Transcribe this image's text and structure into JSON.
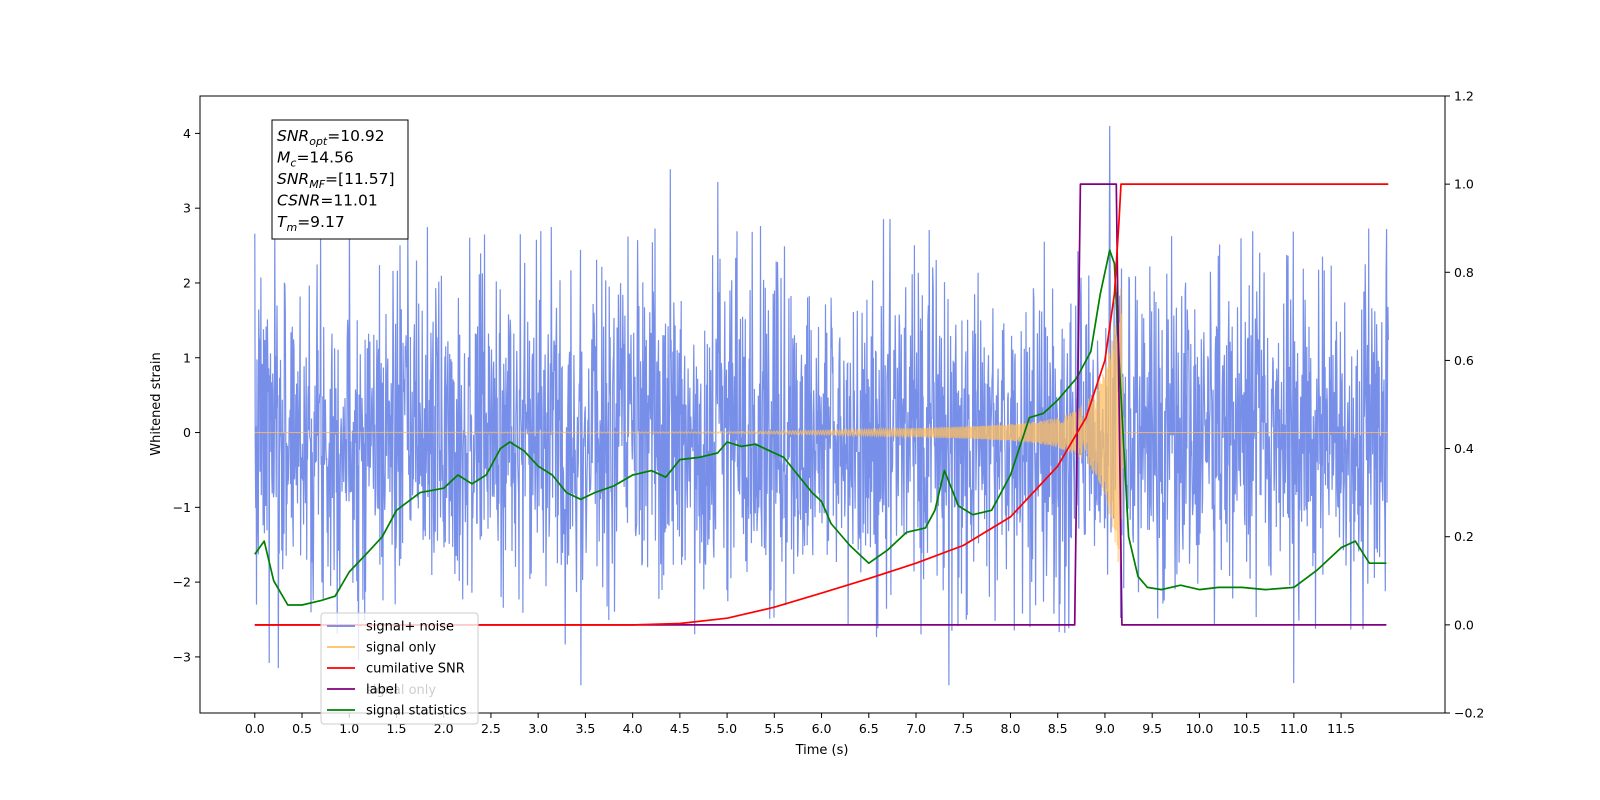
{
  "chart_data": {
    "type": "line",
    "xlabel": "Time (s)",
    "ylabel": "Whitened strain",
    "xlim": [
      -0.58,
      12.6
    ],
    "ylim": [
      -3.75,
      4.5
    ],
    "y2lim": [
      -0.2,
      1.2
    ],
    "x_ticks": [
      "0.0",
      "0.5",
      "1.0",
      "1.5",
      "2.0",
      "2.5",
      "3.0",
      "3.5",
      "4.0",
      "4.5",
      "5.0",
      "5.5",
      "6.0",
      "6.5",
      "7.0",
      "7.5",
      "8.0",
      "8.5",
      "9.0",
      "9.5",
      "10.0",
      "10.5",
      "11.0",
      "11.5"
    ],
    "y_ticks": [
      "−3",
      "−2",
      "−1",
      "0",
      "1",
      "2",
      "3",
      "4"
    ],
    "y2_ticks": [
      "−0.2",
      "0.0",
      "0.2",
      "0.4",
      "0.6",
      "0.8",
      "1.0",
      "1.2"
    ],
    "annotation": [
      {
        "base": "SNR",
        "sub": "opt",
        "value": "=10.92"
      },
      {
        "base": "M",
        "sub": "c",
        "value": "=14.56"
      },
      {
        "base": "SNR",
        "sub": "MF",
        "value": "=[11.57]"
      },
      {
        "base": "CSNR",
        "sub": "",
        "value": "=11.01"
      },
      {
        "base": "T",
        "sub": "m",
        "value": "=9.17"
      }
    ],
    "legend": {
      "placement": "lower-left",
      "entries": [
        {
          "label": "signal+ noise",
          "color": "#6b86e6"
        },
        {
          "label": "signal only",
          "color": "#ffbf60"
        },
        {
          "label": "cumilative SNR",
          "color": "#ff0000"
        },
        {
          "label": "label",
          "color": "#800080"
        },
        {
          "label": "signal statistics",
          "color": "#008000"
        }
      ],
      "occluded_text": "signal only"
    },
    "series": [
      {
        "name": "signal+ noise",
        "axis": "left",
        "color": "#6b86e6",
        "kind": "noise",
        "x_range": [
          0.0,
          12.0
        ],
        "typical_envelope": [
          -2.3,
          2.6
        ],
        "peaks": [
          [
            0.02,
            2.75
          ],
          [
            0.02,
            -2.3
          ],
          [
            0.15,
            -3.08
          ],
          [
            0.25,
            -3.15
          ],
          [
            1.1,
            -3.05
          ],
          [
            3.45,
            -3.38
          ],
          [
            4.4,
            3.52
          ],
          [
            4.9,
            3.35
          ],
          [
            7.35,
            -3.38
          ],
          [
            9.05,
            4.1
          ],
          [
            11.0,
            -3.35
          ],
          [
            11.98,
            2.72
          ]
        ]
      },
      {
        "name": "signal only",
        "axis": "left",
        "color": "#ffbf60",
        "kind": "chirp",
        "x": [
          0.0,
          5.0,
          6.0,
          7.0,
          7.5,
          8.0,
          8.3,
          8.5,
          8.7,
          8.9,
          9.0,
          9.1,
          9.17,
          9.2,
          12.0
        ],
        "amplitude": [
          0.0,
          0.01,
          0.03,
          0.06,
          0.08,
          0.11,
          0.15,
          0.2,
          0.3,
          0.55,
          0.85,
          1.4,
          2.0,
          0.0,
          0.0
        ]
      },
      {
        "name": "cumilative SNR",
        "axis": "right",
        "color": "#ff0000",
        "x": [
          0.0,
          4.0,
          4.5,
          5.0,
          5.5,
          6.0,
          6.5,
          7.0,
          7.5,
          8.0,
          8.5,
          8.8,
          9.0,
          9.1,
          9.15,
          9.17,
          9.2,
          12.0
        ],
        "values": [
          0.0,
          0.0,
          0.003,
          0.015,
          0.04,
          0.072,
          0.105,
          0.14,
          0.18,
          0.245,
          0.36,
          0.47,
          0.6,
          0.75,
          0.92,
          1.0,
          1.0,
          1.0
        ]
      },
      {
        "name": "label",
        "axis": "right",
        "color": "#800080",
        "x": [
          0.0,
          8.68,
          8.74,
          9.12,
          9.18,
          11.98
        ],
        "values": [
          0.0,
          0.0,
          1.0,
          1.0,
          0.0,
          0.0
        ]
      },
      {
        "name": "signal statistics",
        "axis": "right",
        "color": "#008000",
        "x": [
          0.0,
          0.1,
          0.2,
          0.35,
          0.5,
          0.7,
          0.85,
          1.0,
          1.2,
          1.35,
          1.5,
          1.75,
          2.0,
          2.15,
          2.3,
          2.45,
          2.6,
          2.7,
          2.85,
          3.0,
          3.15,
          3.3,
          3.45,
          3.6,
          3.8,
          4.0,
          4.2,
          4.35,
          4.5,
          4.7,
          4.9,
          5.0,
          5.15,
          5.3,
          5.45,
          5.6,
          5.75,
          5.9,
          6.0,
          6.1,
          6.3,
          6.5,
          6.7,
          6.9,
          7.1,
          7.2,
          7.3,
          7.45,
          7.6,
          7.8,
          8.0,
          8.2,
          8.35,
          8.5,
          8.7,
          8.85,
          8.95,
          9.05,
          9.1,
          9.15,
          9.25,
          9.35,
          9.45,
          9.6,
          9.8,
          10.0,
          10.2,
          10.45,
          10.7,
          11.0,
          11.25,
          11.5,
          11.65,
          11.8,
          11.98
        ],
        "values": [
          0.16,
          0.19,
          0.1,
          0.045,
          0.045,
          0.055,
          0.065,
          0.12,
          0.165,
          0.2,
          0.26,
          0.3,
          0.31,
          0.34,
          0.32,
          0.34,
          0.4,
          0.415,
          0.395,
          0.36,
          0.34,
          0.3,
          0.285,
          0.3,
          0.315,
          0.34,
          0.35,
          0.335,
          0.375,
          0.38,
          0.39,
          0.415,
          0.405,
          0.41,
          0.395,
          0.38,
          0.34,
          0.3,
          0.28,
          0.23,
          0.18,
          0.14,
          0.17,
          0.21,
          0.22,
          0.26,
          0.35,
          0.27,
          0.25,
          0.26,
          0.34,
          0.47,
          0.48,
          0.51,
          0.56,
          0.62,
          0.75,
          0.85,
          0.82,
          0.6,
          0.2,
          0.11,
          0.085,
          0.08,
          0.09,
          0.08,
          0.085,
          0.085,
          0.08,
          0.085,
          0.125,
          0.175,
          0.19,
          0.14,
          0.14
        ]
      }
    ]
  }
}
